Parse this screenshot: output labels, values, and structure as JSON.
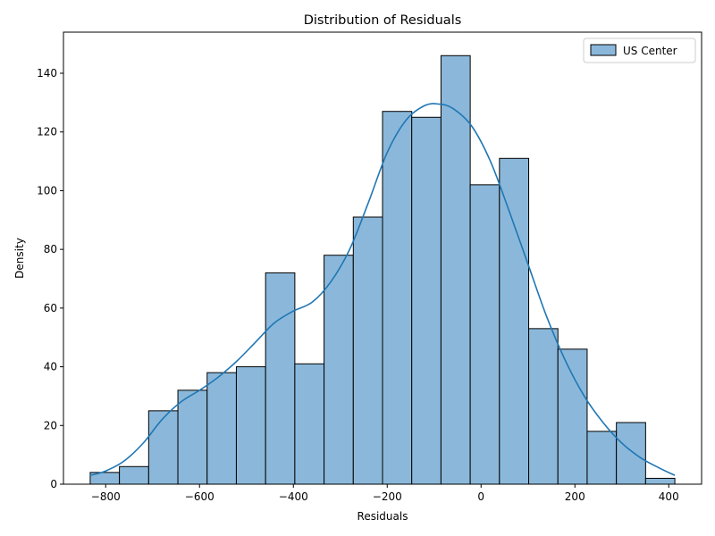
{
  "chart_data": {
    "type": "bar",
    "title": "Distribution of Residuals",
    "xlabel": "Residuals",
    "ylabel": "Density",
    "xlim": [
      -890,
      470
    ],
    "ylim": [
      0,
      154
    ],
    "xticks": [
      -800,
      -600,
      -400,
      -200,
      0,
      200,
      400
    ],
    "xtick_labels": [
      "−800",
      "−600",
      "−400",
      "−200",
      "0",
      "200",
      "400"
    ],
    "yticks": [
      0,
      20,
      40,
      60,
      80,
      100,
      120,
      140
    ],
    "ytick_labels": [
      "0",
      "20",
      "40",
      "60",
      "80",
      "100",
      "120",
      "140"
    ],
    "grid": false,
    "legend": {
      "placement": "top-right",
      "entries": [
        "US Center"
      ]
    },
    "series": [
      {
        "name": "US Center",
        "bin_edges": [
          -833,
          -770.7,
          -708.4,
          -646.1,
          -583.8,
          -521.5,
          -459.2,
          -396.9,
          -334.6,
          -272.3,
          -210,
          -147.7,
          -85.4,
          -23.1,
          39.2,
          101.5,
          163.8,
          226.1,
          288.4,
          350.7,
          413
        ],
        "values": [
          4,
          6,
          25,
          32,
          38,
          40,
          72,
          41,
          78,
          91,
          127,
          125,
          146,
          102,
          111,
          53,
          46,
          18,
          21,
          2
        ],
        "kde": {
          "x": [
            -833,
            -800,
            -760,
            -720,
            -680,
            -640,
            -600,
            -560,
            -520,
            -480,
            -440,
            -400,
            -360,
            -320,
            -280,
            -240,
            -200,
            -160,
            -120,
            -90,
            -60,
            -20,
            20,
            60,
            100,
            140,
            180,
            220,
            260,
            300,
            340,
            380,
            413
          ],
          "y": [
            3,
            4.5,
            8,
            14,
            22,
            28,
            32,
            36.5,
            42,
            48.5,
            55,
            59,
            62,
            69,
            80,
            96,
            113,
            124,
            129,
            129.5,
            128,
            122,
            110,
            93,
            75,
            57,
            42,
            30,
            21,
            14,
            9,
            5.5,
            3
          ]
        },
        "bar_color": "#8bb8da",
        "line_color": "#1f77b4"
      }
    ]
  }
}
